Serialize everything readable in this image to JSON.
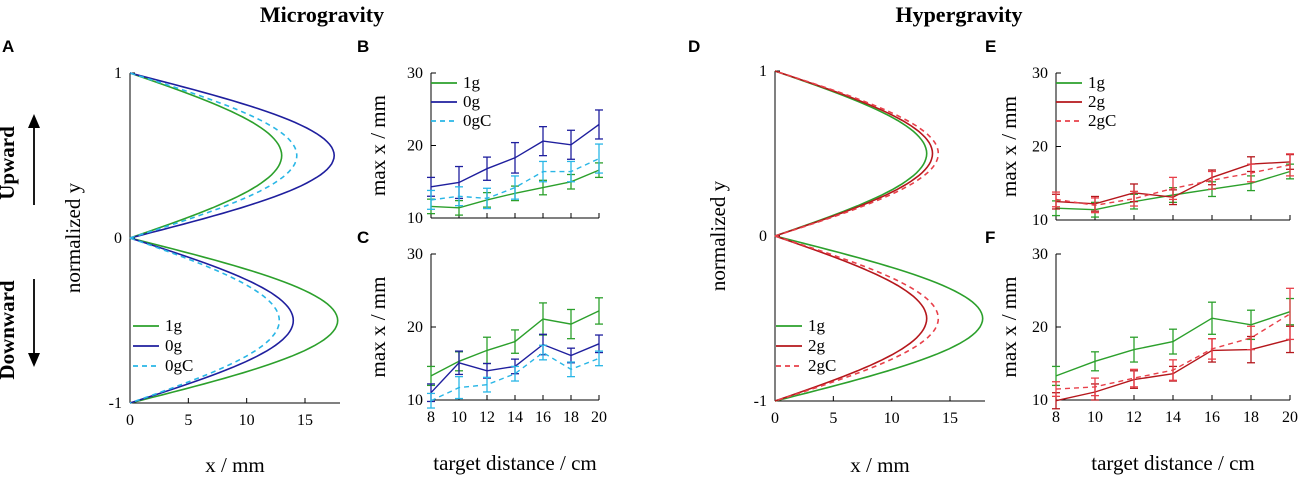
{
  "colors": {
    "g1": "#2ca02c",
    "g0": "#1f1f9e",
    "g0c": "#29b6e6",
    "g2": "#b5171c",
    "g2c": "#e8404a"
  },
  "headings": {
    "left": "Microgravity",
    "right": "Hypergravity"
  },
  "side_labels": {
    "up": "Upward",
    "down": "Downward"
  },
  "chart_data": [
    {
      "id": "A",
      "type": "line",
      "letter": "A",
      "xlabel": "x / mm",
      "ylabel": "normalized y",
      "xlim": [
        0,
        18
      ],
      "ylim": [
        -1,
        1
      ],
      "xticks": [
        "0",
        "5",
        "10",
        "15"
      ],
      "xtick_values": [
        0,
        5,
        10,
        15
      ],
      "yticks": [
        "1",
        "0",
        "-1"
      ],
      "ytick_values": [
        1,
        0,
        -1
      ],
      "series": [
        {
          "name": "1g",
          "color_key": "g1",
          "dash": false,
          "up_max": 13.0,
          "down_max": 17.8
        },
        {
          "name": "0g",
          "color_key": "g0",
          "dash": false,
          "up_max": 17.5,
          "down_max": 14.0
        },
        {
          "name": "0gC",
          "color_key": "g0c",
          "dash": true,
          "up_max": 14.3,
          "down_max": 12.8
        }
      ],
      "legend": [
        "1g",
        "0g",
        "0gC"
      ]
    },
    {
      "id": "B",
      "type": "line",
      "letter": "B",
      "xlabel": "",
      "ylabel": "max x / mm",
      "xlim": [
        8,
        20
      ],
      "ylim": [
        10,
        30
      ],
      "x": [
        8,
        10,
        12,
        14,
        16,
        18,
        20
      ],
      "yticks": [
        "10",
        "20",
        "30"
      ],
      "ytick_values": [
        10,
        20,
        30
      ],
      "series": [
        {
          "name": "1g",
          "color_key": "g1",
          "dash": false,
          "values": [
            11.6,
            11.4,
            12.5,
            13.4,
            14.2,
            15.0,
            16.6
          ],
          "err": [
            1.0,
            1.0,
            1.0,
            1.0,
            1.0,
            1.0,
            1.0
          ]
        },
        {
          "name": "0g",
          "color_key": "g0",
          "dash": false,
          "values": [
            14.3,
            14.9,
            16.8,
            18.3,
            20.6,
            20.1,
            22.9
          ],
          "err": [
            1.3,
            2.2,
            1.6,
            2.1,
            2.0,
            2.0,
            2.0
          ]
        },
        {
          "name": "0gC",
          "color_key": "g0c",
          "dash": true,
          "values": [
            12.5,
            13.0,
            12.7,
            14.2,
            16.4,
            16.4,
            18.2
          ],
          "err": [
            1.3,
            1.3,
            1.4,
            1.6,
            1.4,
            1.4,
            2.0
          ]
        }
      ],
      "legend": [
        "1g",
        "0g",
        "0gC"
      ]
    },
    {
      "id": "C",
      "type": "line",
      "letter": "C",
      "xlabel": "target distance / cm",
      "ylabel": "max x / mm",
      "xlim": [
        8,
        20
      ],
      "ylim": [
        10,
        30
      ],
      "x": [
        8,
        10,
        12,
        14,
        16,
        18,
        20
      ],
      "xticks": [
        "8",
        "10",
        "12",
        "14",
        "16",
        "18",
        "20"
      ],
      "yticks": [
        "10",
        "20",
        "30"
      ],
      "ytick_values": [
        10,
        20,
        30
      ],
      "series": [
        {
          "name": "1g",
          "color_key": "g1",
          "dash": false,
          "values": [
            13.3,
            15.3,
            16.8,
            18.0,
            21.1,
            20.4,
            22.2
          ],
          "err": [
            1.3,
            1.3,
            1.8,
            1.6,
            2.2,
            2.0,
            1.8
          ]
        },
        {
          "name": "0g",
          "color_key": "g0",
          "dash": false,
          "values": [
            11.0,
            15.1,
            14.0,
            14.6,
            17.6,
            16.1,
            17.7
          ],
          "err": [
            1.2,
            1.6,
            1.0,
            1.0,
            1.4,
            1.0,
            1.2
          ]
        },
        {
          "name": "0gC",
          "color_key": "g0c",
          "dash": true,
          "values": [
            9.9,
            11.7,
            12.1,
            13.6,
            16.5,
            14.2,
            15.7
          ],
          "err": [
            1.0,
            1.5,
            1.0,
            1.0,
            1.0,
            1.0,
            1.0
          ]
        }
      ],
      "legend": []
    },
    {
      "id": "D",
      "type": "line",
      "letter": "D",
      "xlabel": "x / mm",
      "ylabel": "normalized y",
      "xlim": [
        0,
        18
      ],
      "ylim": [
        -1,
        1
      ],
      "xticks": [
        "0",
        "5",
        "10",
        "15"
      ],
      "xtick_values": [
        0,
        5,
        10,
        15
      ],
      "yticks": [
        "1",
        "0",
        "-1"
      ],
      "ytick_values": [
        1,
        0,
        -1
      ],
      "series": [
        {
          "name": "1g",
          "color_key": "g1",
          "dash": false,
          "up_max": 13.0,
          "down_max": 17.8
        },
        {
          "name": "2g",
          "color_key": "g2",
          "dash": false,
          "up_max": 13.5,
          "down_max": 13.0
        },
        {
          "name": "2gC",
          "color_key": "g2c",
          "dash": true,
          "up_max": 14.0,
          "down_max": 14.0
        }
      ],
      "legend": [
        "1g",
        "2g",
        "2gC"
      ]
    },
    {
      "id": "E",
      "type": "line",
      "letter": "E",
      "xlabel": "",
      "ylabel": "max x / mm",
      "xlim": [
        8,
        20
      ],
      "ylim": [
        10,
        30
      ],
      "x": [
        8,
        10,
        12,
        14,
        16,
        18,
        20
      ],
      "yticks": [
        "10",
        "20",
        "30"
      ],
      "ytick_values": [
        10,
        20,
        30
      ],
      "series": [
        {
          "name": "1g",
          "color_key": "g1",
          "dash": false,
          "values": [
            11.6,
            11.4,
            12.5,
            13.4,
            14.2,
            15.0,
            16.6
          ],
          "err": [
            1.0,
            1.0,
            1.0,
            1.0,
            1.0,
            1.0,
            1.0
          ]
        },
        {
          "name": "2g",
          "color_key": "g2",
          "dash": false,
          "values": [
            12.5,
            12.2,
            13.7,
            13.1,
            15.8,
            17.6,
            17.9
          ],
          "err": [
            1.0,
            1.0,
            1.2,
            1.0,
            1.0,
            1.0,
            1.0
          ]
        },
        {
          "name": "2gC",
          "color_key": "g2c",
          "dash": true,
          "values": [
            12.8,
            12.0,
            12.9,
            14.3,
            15.4,
            16.4,
            17.5
          ],
          "err": [
            1.0,
            1.0,
            1.0,
            1.5,
            1.2,
            1.2,
            1.5
          ]
        }
      ],
      "legend": [
        "1g",
        "2g",
        "2gC"
      ]
    },
    {
      "id": "F",
      "type": "line",
      "letter": "F",
      "xlabel": "target distance / cm",
      "ylabel": "max x / mm",
      "xlim": [
        8,
        20
      ],
      "ylim": [
        10,
        30
      ],
      "x": [
        8,
        10,
        12,
        14,
        16,
        18,
        20
      ],
      "xticks": [
        "8",
        "10",
        "12",
        "14",
        "16",
        "18",
        "20"
      ],
      "yticks": [
        "10",
        "20",
        "30"
      ],
      "ytick_values": [
        10,
        20,
        30
      ],
      "series": [
        {
          "name": "1g",
          "color_key": "g1",
          "dash": false,
          "values": [
            13.3,
            15.3,
            16.9,
            18.0,
            21.2,
            20.3,
            22.1
          ],
          "err": [
            1.3,
            1.3,
            1.7,
            1.7,
            2.2,
            2.0,
            1.8
          ]
        },
        {
          "name": "2g",
          "color_key": "g2",
          "dash": false,
          "values": [
            9.9,
            11.1,
            12.8,
            13.6,
            16.8,
            16.9,
            18.3
          ],
          "err": [
            1.1,
            1.1,
            1.2,
            1.0,
            1.6,
            1.8,
            1.8
          ]
        },
        {
          "name": "2gC",
          "color_key": "g2c",
          "dash": true,
          "values": [
            11.5,
            11.8,
            13.0,
            14.1,
            17.0,
            18.5,
            21.8
          ],
          "err": [
            1.0,
            1.2,
            1.2,
            1.4,
            1.4,
            1.6,
            3.5
          ]
        }
      ],
      "legend": []
    }
  ]
}
